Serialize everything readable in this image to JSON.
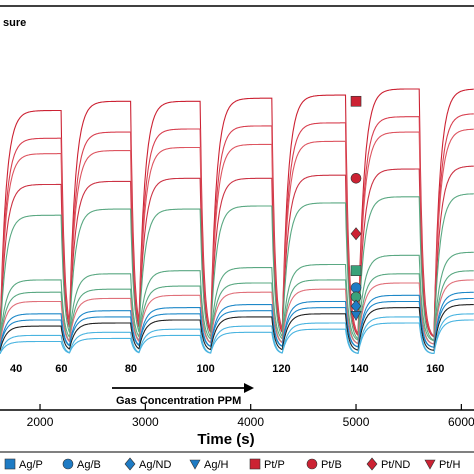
{
  "chart_data": {
    "type": "line",
    "title": "sure",
    "xlabel": "Time (s)",
    "ylabel": "",
    "xlim": [
      1620,
      6120
    ],
    "ylim": [
      0,
      1
    ],
    "grid": false,
    "x_ticks": [
      2000,
      3000,
      4000,
      5000,
      6000
    ],
    "x_tick_labels": [
      "2000",
      "3000",
      "4000",
      "5000",
      "6000"
    ],
    "concentration_labels": [
      {
        "x": 1620,
        "label": "40"
      },
      {
        "x": 2050,
        "label": "60"
      },
      {
        "x": 2710,
        "label": "80"
      },
      {
        "x": 3390,
        "label": "100"
      },
      {
        "x": 4110,
        "label": "120"
      },
      {
        "x": 4850,
        "label": "140"
      },
      {
        "x": 5570,
        "label": "160"
      }
    ],
    "arrow_annotation": "Gas Concentration PPM",
    "pulses": [
      {
        "on": 1620,
        "off": 2200
      },
      {
        "on": 2280,
        "off": 2860
      },
      {
        "on": 2940,
        "off": 3520
      },
      {
        "on": 3620,
        "off": 4200
      },
      {
        "on": 4300,
        "off": 4900
      },
      {
        "on": 5020,
        "off": 5600
      },
      {
        "on": 5740,
        "off": 6120
      }
    ],
    "series": [
      {
        "name": "Pt/P",
        "color": "#cc2233",
        "baseline": 0.07,
        "levels": [
          0.81,
          0.84,
          0.84,
          0.85,
          0.86,
          0.88,
          0.88
        ]
      },
      {
        "name": "Pt/B",
        "color": "#d84050",
        "baseline": 0.07,
        "levels": [
          0.72,
          0.74,
          0.75,
          0.76,
          0.77,
          0.79,
          0.8
        ]
      },
      {
        "name": "Pt/ND",
        "color": "#dd5560",
        "baseline": 0.07,
        "levels": [
          0.67,
          0.68,
          0.69,
          0.7,
          0.71,
          0.74,
          0.75
        ]
      },
      {
        "name": "",
        "color": "#cc3344",
        "baseline": 0.07,
        "levels": [
          0.57,
          0.58,
          0.59,
          0.59,
          0.6,
          0.62,
          0.63
        ]
      },
      {
        "name": "",
        "color": "#5aa882",
        "baseline": 0.06,
        "levels": [
          0.47,
          0.49,
          0.49,
          0.5,
          0.51,
          0.53,
          0.54
        ]
      },
      {
        "name": "",
        "color": "#5aa882",
        "baseline": 0.06,
        "levels": [
          0.26,
          0.28,
          0.29,
          0.3,
          0.31,
          0.34,
          0.35
        ]
      },
      {
        "name": "",
        "color": "#5aa882",
        "baseline": 0.05,
        "levels": [
          0.22,
          0.23,
          0.24,
          0.25,
          0.26,
          0.28,
          0.29
        ]
      },
      {
        "name": "",
        "color": "#e0707a",
        "baseline": 0.05,
        "levels": [
          0.19,
          0.2,
          0.21,
          0.22,
          0.23,
          0.25,
          0.26
        ]
      },
      {
        "name": "",
        "color": "#1e88c8",
        "baseline": 0.04,
        "levels": [
          0.15,
          0.16,
          0.17,
          0.18,
          0.19,
          0.21,
          0.22
        ]
      },
      {
        "name": "",
        "color": "#1e88c8",
        "baseline": 0.04,
        "levels": [
          0.13,
          0.14,
          0.15,
          0.16,
          0.17,
          0.19,
          0.2
        ]
      },
      {
        "name": "",
        "color": "#222222",
        "baseline": 0.03,
        "levels": [
          0.11,
          0.12,
          0.13,
          0.14,
          0.15,
          0.17,
          0.18
        ]
      },
      {
        "name": "",
        "color": "#4ab4e0",
        "baseline": 0.02,
        "levels": [
          0.08,
          0.09,
          0.1,
          0.11,
          0.12,
          0.14,
          0.15
        ]
      },
      {
        "name": "",
        "color": "#4ab4e0",
        "baseline": 0.02,
        "levels": [
          0.06,
          0.07,
          0.08,
          0.09,
          0.1,
          0.12,
          0.13
        ]
      }
    ],
    "inline_markers": [
      {
        "x": 5000,
        "y": 0.84,
        "shape": "square",
        "color": "#cc2233"
      },
      {
        "x": 5000,
        "y": 0.59,
        "shape": "circle",
        "color": "#cc2233"
      },
      {
        "x": 5000,
        "y": 0.41,
        "shape": "diamond",
        "color": "#cc2233"
      },
      {
        "x": 5000,
        "y": 0.29,
        "shape": "square",
        "color": "#3aa27a"
      },
      {
        "x": 5000,
        "y": 0.235,
        "shape": "circle",
        "color": "#1e7bc4"
      },
      {
        "x": 5000,
        "y": 0.205,
        "shape": "circle",
        "color": "#3aa27a"
      },
      {
        "x": 5000,
        "y": 0.175,
        "shape": "diamond",
        "color": "#1e7bc4"
      },
      {
        "x": 5000,
        "y": 0.145,
        "shape": "triangle",
        "color": "#1e7bc4"
      }
    ],
    "legend": {
      "placement": "bottom",
      "entries": [
        {
          "label": "Ag/P",
          "shape": "square",
          "color": "#1e7bc4"
        },
        {
          "label": "Ag/B",
          "shape": "circle",
          "color": "#1e7bc4"
        },
        {
          "label": "Ag/ND",
          "shape": "diamond",
          "color": "#1e7bc4"
        },
        {
          "label": "Ag/H",
          "shape": "triangle",
          "color": "#1e7bc4"
        },
        {
          "label": "Pt/P",
          "shape": "square",
          "color": "#cc2233"
        },
        {
          "label": "Pt/B",
          "shape": "circle",
          "color": "#cc2233"
        },
        {
          "label": "Pt/ND",
          "shape": "diamond",
          "color": "#cc2233"
        },
        {
          "label": "Pt/H",
          "shape": "triangle",
          "color": "#cc2233"
        }
      ]
    }
  }
}
